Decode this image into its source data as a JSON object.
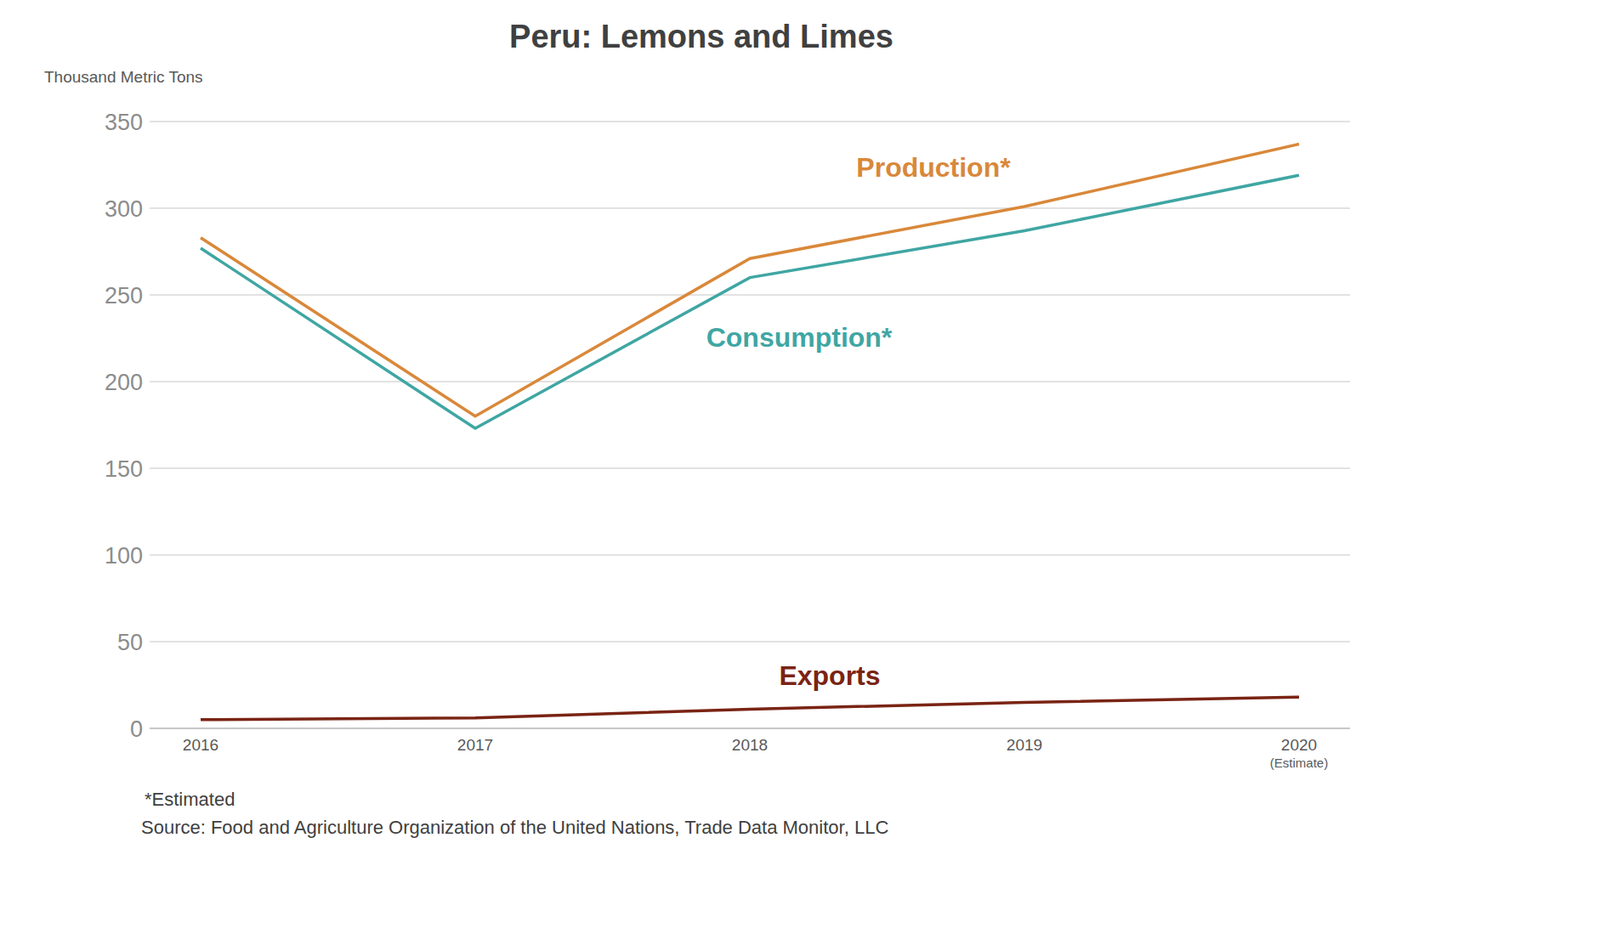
{
  "chart_data": {
    "type": "line",
    "title": "Peru: Lemons and Limes",
    "y_label": "Thousand Metric Tons",
    "categories": [
      "2016",
      "2017",
      "2018",
      "2019",
      "2020\n(Estimate)"
    ],
    "series": [
      {
        "name": "Production*",
        "color": "#d9883a",
        "values": [
          283,
          180,
          271,
          301,
          337
        ]
      },
      {
        "name": "Consumption*",
        "color": "#3fa6a3",
        "values": [
          277,
          173,
          260,
          287,
          319
        ]
      },
      {
        "name": "Exports",
        "color": "#7a2414",
        "values": [
          5,
          6,
          11,
          15,
          18
        ]
      }
    ],
    "ylim": [
      0,
      350
    ],
    "yticks": [
      0,
      50,
      100,
      150,
      200,
      250,
      300,
      350
    ],
    "grid": true,
    "footnote": "*Estimated",
    "source": "Source: Food and Agriculture Organization of the United Nations, Trade Data Monitor, LLC"
  }
}
